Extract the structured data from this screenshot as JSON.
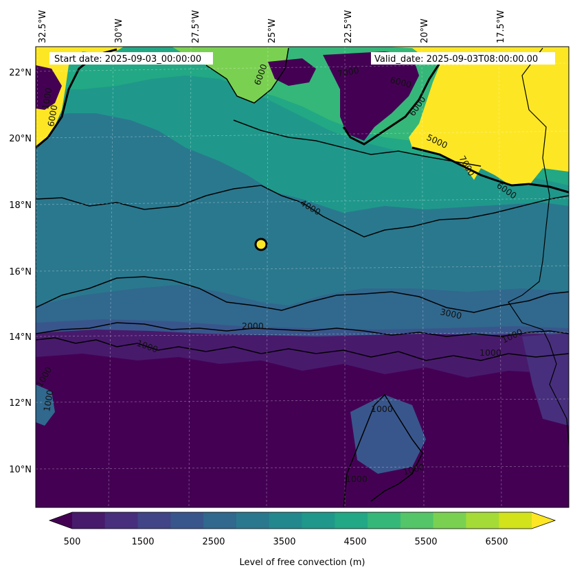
{
  "header": {
    "start_date": "Start date: 2025-09-03_00:00:00",
    "valid_date": "Valid_date: 2025-09-03T08:00:00.00"
  },
  "map": {
    "lon_labels": [
      "32.5°W",
      "30°W",
      "27.5°W",
      "25°W",
      "22.5°W",
      "20°W",
      "17.5°W"
    ],
    "lat_labels": [
      "22°N",
      "20°N",
      "18°N",
      "16°N",
      "14°N",
      "12°N",
      "10°N"
    ],
    "contour_labels": [
      "7000",
      "6000",
      "6000",
      "5000",
      "7000",
      "6000",
      "6000",
      "6000",
      "4000",
      "3000",
      "2000",
      "1000",
      "1000",
      "1000",
      "1000",
      "1000",
      "1000",
      "1000",
      "1000",
      "1000"
    ],
    "gridlines": true
  },
  "colorbar": {
    "label": "Level of free convection (m)",
    "tick_labels": [
      "500",
      "1500",
      "2500",
      "3500",
      "4500",
      "5500",
      "6500"
    ],
    "colors": [
      "#440154",
      "#481a6c",
      "#472f7d",
      "#414487",
      "#39568c",
      "#31688e",
      "#2a788e",
      "#23888e",
      "#1f988b",
      "#22a884",
      "#35b779",
      "#54c568",
      "#7ad151",
      "#a5db36",
      "#d2e21b",
      "#fde725"
    ],
    "extend": "both"
  },
  "colors": {
    "level_500": "#440154",
    "level_1000": "#481a6c",
    "level_2500": "#39568c",
    "level_3500": "#2a788e",
    "level_4500": "#1f988b",
    "level_5500": "#35b779",
    "level_6000": "#7ad151",
    "level_7000": "#fde725"
  }
}
